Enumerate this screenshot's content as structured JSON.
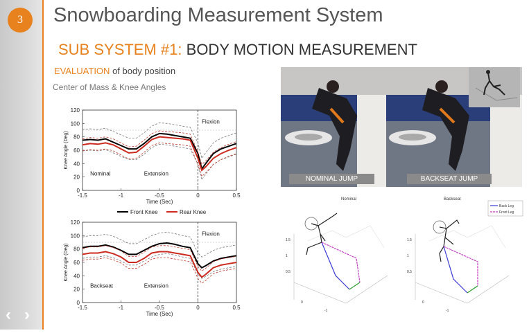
{
  "slide": {
    "number": "3",
    "prev_icon": "‹",
    "next_icon": "›"
  },
  "title": "Snowboarding Measurement System",
  "subtitle": {
    "prefix": "SUB SYSTEM #1:",
    "main": "BODY MOTION MEASUREMENT"
  },
  "evaluation": {
    "keyword": "EVALUATION",
    "rest": "of body position"
  },
  "section_label": "Center of Mass & Knee Angles",
  "colors": {
    "accent": "#e8821e",
    "front_knee": "#000000",
    "rear_knee": "#cc2a1e"
  },
  "chart_data": [
    {
      "type": "line",
      "ylabel": "Knee Angle (Deg)",
      "xlabel": "Time (Sec)",
      "ylim": [
        0,
        120
      ],
      "xlim": [
        -1.5,
        0.5
      ],
      "yticks": [
        "0",
        "20",
        "40",
        "60",
        "80",
        "100",
        "120"
      ],
      "xticks": [
        "-1.5",
        "-1",
        "-0.5",
        "0",
        "0.5"
      ],
      "annotations": [
        "Nominal",
        "Extension",
        "Flexion"
      ],
      "legend": [
        "Front Knee",
        "Rear Knee"
      ],
      "x": [
        -1.5,
        -1.4,
        -1.3,
        -1.2,
        -1.1,
        -1.0,
        -0.9,
        -0.8,
        -0.7,
        -0.6,
        -0.5,
        -0.4,
        -0.3,
        -0.2,
        -0.1,
        0.0,
        0.05,
        0.1,
        0.2,
        0.3,
        0.4,
        0.5
      ],
      "series": [
        {
          "name": "Front Knee",
          "values": [
            75,
            76,
            75,
            77,
            72,
            67,
            62,
            62,
            70,
            80,
            85,
            84,
            82,
            80,
            78,
            55,
            32,
            40,
            55,
            62,
            66,
            70
          ]
        },
        {
          "name": "Rear Knee",
          "values": [
            68,
            70,
            69,
            71,
            68,
            62,
            56,
            57,
            66,
            76,
            80,
            79,
            78,
            77,
            75,
            48,
            30,
            35,
            48,
            55,
            60,
            64
          ]
        }
      ]
    },
    {
      "type": "line",
      "ylabel": "Knee Angle (Deg)",
      "xlabel": "Time (Sec)",
      "ylim": [
        0,
        120
      ],
      "xlim": [
        -1.5,
        0.5
      ],
      "yticks": [
        "0",
        "20",
        "40",
        "60",
        "80",
        "100",
        "120"
      ],
      "xticks": [
        "-1.5",
        "-1",
        "-0.5",
        "0",
        "0.5"
      ],
      "annotations": [
        "Backseat",
        "Extension",
        "Flexion"
      ],
      "x": [
        -1.5,
        -1.4,
        -1.3,
        -1.2,
        -1.1,
        -1.0,
        -0.9,
        -0.8,
        -0.7,
        -0.6,
        -0.5,
        -0.4,
        -0.3,
        -0.2,
        -0.1,
        0.0,
        0.05,
        0.1,
        0.2,
        0.3,
        0.4,
        0.5
      ],
      "series": [
        {
          "name": "Front Knee",
          "values": [
            82,
            84,
            84,
            86,
            83,
            78,
            72,
            72,
            78,
            84,
            88,
            89,
            87,
            84,
            82,
            58,
            52,
            55,
            62,
            66,
            68,
            70
          ]
        },
        {
          "name": "Rear Knee",
          "values": [
            72,
            74,
            74,
            76,
            73,
            68,
            60,
            60,
            66,
            74,
            76,
            76,
            74,
            72,
            70,
            45,
            38,
            42,
            52,
            56,
            58,
            60
          ]
        }
      ]
    }
  ],
  "photos": {
    "left_label": "NOMINAL JUMP",
    "right_label": "BACKSEAT JUMP"
  },
  "diagrams": {
    "left_title": "Nominal",
    "right_title": "Backseat",
    "legend": [
      "Back Leg",
      "Front Leg"
    ],
    "ticks": [
      "1.5",
      "1",
      "0.5",
      "0",
      "-1"
    ]
  }
}
